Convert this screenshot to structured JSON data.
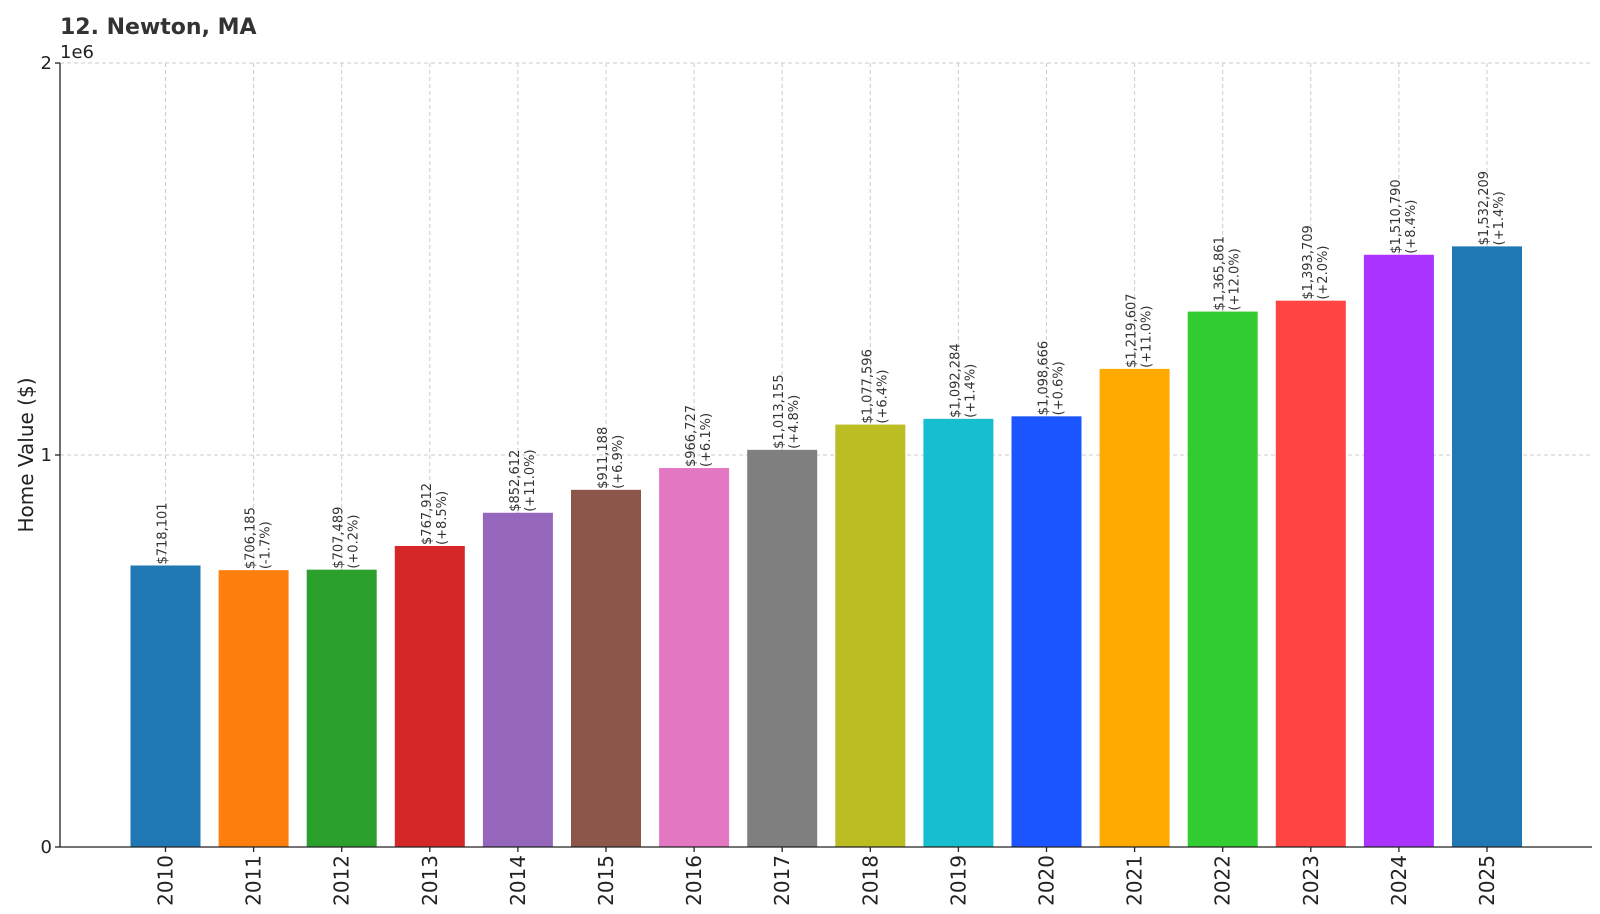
{
  "chart_data": {
    "type": "bar",
    "title": "12. Newton, MA",
    "ylabel": "Home Value ($)",
    "xlabel": "",
    "y_offset_label": "1e6",
    "ylim": [
      0,
      2000000
    ],
    "yticks": [
      0,
      1000000,
      2000000
    ],
    "ytick_labels": [
      "0",
      "1",
      "2"
    ],
    "grid": true,
    "categories": [
      "2010",
      "2011",
      "2012",
      "2013",
      "2014",
      "2015",
      "2016",
      "2017",
      "2018",
      "2019",
      "2020",
      "2021",
      "2022",
      "2023",
      "2024",
      "2025"
    ],
    "values": [
      718101,
      706185,
      707489,
      767912,
      852612,
      911188,
      966727,
      1013155,
      1077596,
      1092284,
      1098666,
      1219607,
      1365861,
      1393709,
      1510790,
      1532209
    ],
    "value_labels": [
      "$718,101",
      "$706,185",
      "$707,489",
      "$767,912",
      "$852,612",
      "$911,188",
      "$966,727",
      "$1,013,155",
      "$1,077,596",
      "$1,092,284",
      "$1,098,666",
      "$1,219,607",
      "$1,365,861",
      "$1,393,709",
      "$1,510,790",
      "$1,532,209"
    ],
    "change_labels": [
      "",
      "(-1.7%)",
      "(+0.2%)",
      "(+8.5%)",
      "(+11.0%)",
      "(+6.9%)",
      "(+6.1%)",
      "(+4.8%)",
      "(+6.4%)",
      "(+1.4%)",
      "(+0.6%)",
      "(+11.0%)",
      "(+12.0%)",
      "(+2.0%)",
      "(+8.4%)",
      "(+1.4%)"
    ],
    "colors": [
      "#1f77b4",
      "#ff7f0e",
      "#2ca02c",
      "#d62728",
      "#9467bd",
      "#8c564b",
      "#e377c2",
      "#7f7f7f",
      "#bcbd22",
      "#17becf",
      "#1a55ff",
      "#ffaa00",
      "#33cc33",
      "#ff4444",
      "#aa33ff",
      "#1f77b4"
    ]
  }
}
